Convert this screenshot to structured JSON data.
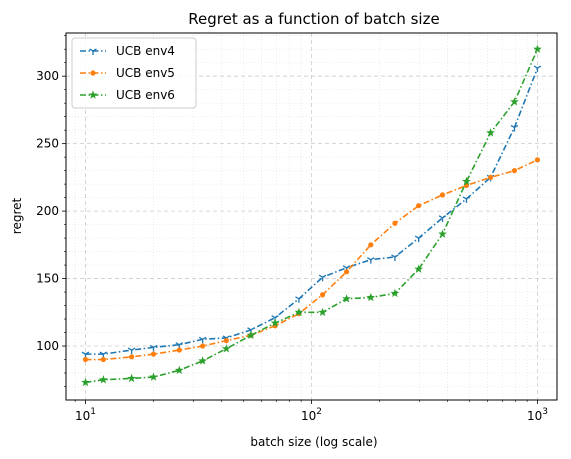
{
  "chart_data": {
    "type": "line",
    "title": "Regret as a function of batch size",
    "xlabel": "batch size (log scale)",
    "ylabel": "regret",
    "xscale": "log",
    "xlim": [
      8.2,
      1220
    ],
    "ylim": [
      60,
      332
    ],
    "grid": true,
    "legend_position": "top-left",
    "xticks": [
      {
        "value": 10,
        "base": "10",
        "exp": "1"
      },
      {
        "value": 100,
        "base": "10",
        "exp": "2"
      },
      {
        "value": 1000,
        "base": "10",
        "exp": "3"
      }
    ],
    "yticks": [
      100,
      150,
      200,
      250,
      300
    ],
    "x": [
      10,
      12,
      16,
      20,
      26,
      33,
      42,
      54,
      69,
      88,
      112,
      143,
      183,
      234,
      298,
      380,
      485,
      620,
      791,
      1000
    ],
    "series": [
      {
        "name": "UCB env4",
        "color": "#1f77b4",
        "marker": "tri",
        "values": [
          94,
          94,
          97,
          99,
          101,
          105,
          106,
          112,
          121,
          135,
          151,
          158,
          164,
          166,
          180,
          195,
          209,
          225,
          262,
          306
        ]
      },
      {
        "name": "UCB env5",
        "color": "#ff7f0e",
        "marker": "dot",
        "values": [
          90,
          90,
          92,
          94,
          97,
          100,
          104,
          108,
          115,
          124,
          138,
          155,
          175,
          191,
          204,
          212,
          219,
          225,
          230,
          238
        ]
      },
      {
        "name": "UCB env6",
        "color": "#2ca02c",
        "marker": "star",
        "values": [
          73,
          75,
          76,
          77,
          82,
          89,
          98,
          108,
          117,
          125,
          125,
          135,
          136,
          139,
          157,
          183,
          222,
          258,
          281,
          320
        ]
      }
    ]
  }
}
